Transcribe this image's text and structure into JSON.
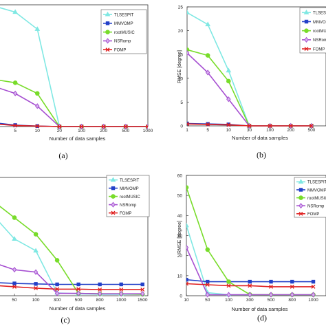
{
  "colors": {
    "TLSESPIT": "#7fe8e3",
    "MMVOMP": "#2340c8",
    "rootMUSIC": "#78dc2a",
    "NSRomp": "#a64fd1",
    "FOMP": "#e02020"
  },
  "chart_data": [
    {
      "type": "line",
      "panel": "(a)",
      "xlabel": "Number of data samples",
      "ylabel": "",
      "x_ticks": [
        "5",
        "10",
        "20",
        "100",
        "200",
        "500",
        "1000"
      ],
      "x_pos": [
        1,
        2,
        3,
        4,
        5,
        6,
        7
      ],
      "ylim": [
        0,
        25
      ],
      "y_ticks": [],
      "legend": {
        "placement": "top-right",
        "entries": [
          "TLSESPIT",
          "MMVOMP",
          "rootMUSIC",
          "NSRomp",
          "FOMP"
        ]
      },
      "series": [
        {
          "key": "TLSESPIT",
          "x": [
            0,
            1,
            2,
            3,
            4,
            5,
            6,
            7
          ],
          "values": [
            24.8,
            23.5,
            20,
            0,
            0,
            0,
            0,
            0
          ]
        },
        {
          "key": "MMVOMP",
          "x": [
            0,
            1,
            2,
            3,
            4,
            5,
            6,
            7
          ],
          "values": [
            0.8,
            0.3,
            0.1,
            0,
            0,
            0,
            0,
            0
          ]
        },
        {
          "key": "rootMUSIC",
          "x": [
            0,
            1,
            2,
            3,
            4,
            5,
            6,
            7
          ],
          "values": [
            9.7,
            9,
            6.8,
            0,
            0,
            0,
            0,
            0
          ]
        },
        {
          "key": "NSRomp",
          "x": [
            0,
            1,
            2,
            3,
            4,
            5,
            6,
            7
          ],
          "values": [
            8.3,
            6.8,
            4.2,
            0,
            0,
            0,
            0,
            0
          ]
        },
        {
          "key": "FOMP",
          "x": [
            0,
            1,
            2,
            3,
            4,
            5,
            6,
            7
          ],
          "values": [
            0.6,
            0.2,
            0.1,
            0,
            0,
            0,
            0,
            0
          ]
        }
      ]
    },
    {
      "type": "line",
      "panel": "(b)",
      "xlabel": "Number of data samples",
      "ylabel": "RMSE [degree]",
      "x_ticks": [
        "1",
        "5",
        "10",
        "30",
        "100",
        "200",
        "500"
      ],
      "x_pos": [
        0,
        1,
        2,
        3,
        4,
        5,
        6
      ],
      "ylim": [
        0,
        25
      ],
      "y_ticks": [
        "0",
        "5",
        "10",
        "15",
        "20",
        "25"
      ],
      "legend": {
        "placement": "top-right",
        "entries": [
          "TLSESPIT",
          "MMVOMP",
          "rootMUSIC",
          "NSRomp",
          "FOMP"
        ]
      },
      "series": [
        {
          "key": "TLSESPIT",
          "x": [
            0,
            1,
            2,
            3,
            4,
            5,
            6
          ],
          "values": [
            23.8,
            21.3,
            11.6,
            0,
            0,
            0,
            0
          ]
        },
        {
          "key": "MMVOMP",
          "x": [
            0,
            1,
            2,
            3,
            4,
            5,
            6
          ],
          "values": [
            0.5,
            0.4,
            0.3,
            0,
            0,
            0,
            0
          ]
        },
        {
          "key": "rootMUSIC",
          "x": [
            0,
            1,
            2,
            3,
            4,
            5,
            6
          ],
          "values": [
            16,
            14.8,
            9.4,
            0,
            0,
            0,
            0
          ]
        },
        {
          "key": "NSRomp",
          "x": [
            0,
            1,
            2,
            3,
            4,
            5,
            6
          ],
          "values": [
            15.3,
            11.2,
            5.6,
            0,
            0,
            0,
            0
          ]
        },
        {
          "key": "FOMP",
          "x": [
            0,
            1,
            2,
            3,
            4,
            5,
            6
          ],
          "values": [
            0.4,
            0.3,
            0.2,
            0,
            0,
            0,
            0
          ]
        }
      ]
    },
    {
      "type": "line",
      "panel": "(c)",
      "xlabel": "Number of data samples",
      "ylabel": "",
      "x_ticks": [
        "50",
        "100",
        "300",
        "500",
        "800",
        "1000",
        "1500"
      ],
      "x_pos": [
        1,
        2,
        3,
        4,
        5,
        6,
        7
      ],
      "ylim": [
        0,
        25
      ],
      "y_ticks": [],
      "legend": {
        "placement": "top-right",
        "entries": [
          "TLSESPIT",
          "MMVOMP",
          "rootMUSIC",
          "NSRomp",
          "FOMP"
        ]
      },
      "series": [
        {
          "key": "TLSESPIT",
          "x": [
            0,
            1,
            2,
            3,
            4,
            5,
            6,
            7
          ],
          "values": [
            17,
            12,
            9.5,
            0.6,
            0.4,
            0.3,
            0.3,
            0.3
          ]
        },
        {
          "key": "MMVOMP",
          "x": [
            0,
            1,
            2,
            3,
            4,
            5,
            6,
            7
          ],
          "values": [
            2.8,
            2.6,
            2.5,
            2.4,
            2.4,
            2.4,
            2.4,
            2.4
          ]
        },
        {
          "key": "rootMUSIC",
          "x": [
            0,
            1,
            2,
            3,
            4,
            5,
            6,
            7
          ],
          "values": [
            20,
            16.5,
            13,
            7.5,
            0.5,
            0.4,
            0.4,
            0.3
          ]
        },
        {
          "key": "NSRomp",
          "x": [
            0,
            1,
            2,
            3,
            4,
            5,
            6,
            7
          ],
          "values": [
            7,
            5.5,
            5,
            0.5,
            0.5,
            0.4,
            0.4,
            0.4
          ]
        },
        {
          "key": "FOMP",
          "x": [
            0,
            1,
            2,
            3,
            4,
            5,
            6,
            7
          ],
          "values": [
            2.2,
            1.9,
            1.6,
            1.4,
            1.4,
            1.3,
            1.3,
            1.3
          ]
        }
      ]
    },
    {
      "type": "line",
      "panel": "(d)",
      "xlabel": "Number of data samples",
      "ylabel": "RMSE [degree]",
      "x_ticks": [
        "10",
        "50",
        "100",
        "300",
        "500",
        "800",
        "1000"
      ],
      "x_pos": [
        0,
        1,
        2,
        3,
        4,
        5,
        6
      ],
      "ylim": [
        0,
        60
      ],
      "y_ticks": [
        "0",
        "10",
        "20",
        "30",
        "40",
        "50",
        "60"
      ],
      "legend": {
        "placement": "top-right",
        "entries": [
          "TLSESPIT",
          "MMVOMP",
          "rootMUSIC",
          "NSRomp",
          "FOMP"
        ]
      },
      "series": [
        {
          "key": "TLSESPIT",
          "x": [
            0,
            1,
            2,
            3,
            4,
            5,
            6
          ],
          "values": [
            35,
            1.5,
            0.5,
            0.5,
            0.5,
            0.5,
            0.5
          ]
        },
        {
          "key": "MMVOMP",
          "x": [
            0,
            1,
            2,
            3,
            4,
            5,
            6
          ],
          "values": [
            8,
            7,
            7,
            7,
            7,
            7,
            7
          ]
        },
        {
          "key": "rootMUSIC",
          "x": [
            0,
            1,
            2,
            3,
            4,
            5,
            6
          ],
          "values": [
            54,
            23,
            7,
            0.6,
            0.5,
            0.5,
            0.5
          ]
        },
        {
          "key": "NSRomp",
          "x": [
            0,
            1,
            2,
            3,
            4,
            5,
            6
          ],
          "values": [
            24,
            0.5,
            0.5,
            0.5,
            0.5,
            0.5,
            0.5
          ]
        },
        {
          "key": "FOMP",
          "x": [
            0,
            1,
            2,
            3,
            4,
            5,
            6
          ],
          "values": [
            6,
            5.5,
            5,
            5,
            4.5,
            4.5,
            4.5
          ]
        }
      ]
    }
  ]
}
